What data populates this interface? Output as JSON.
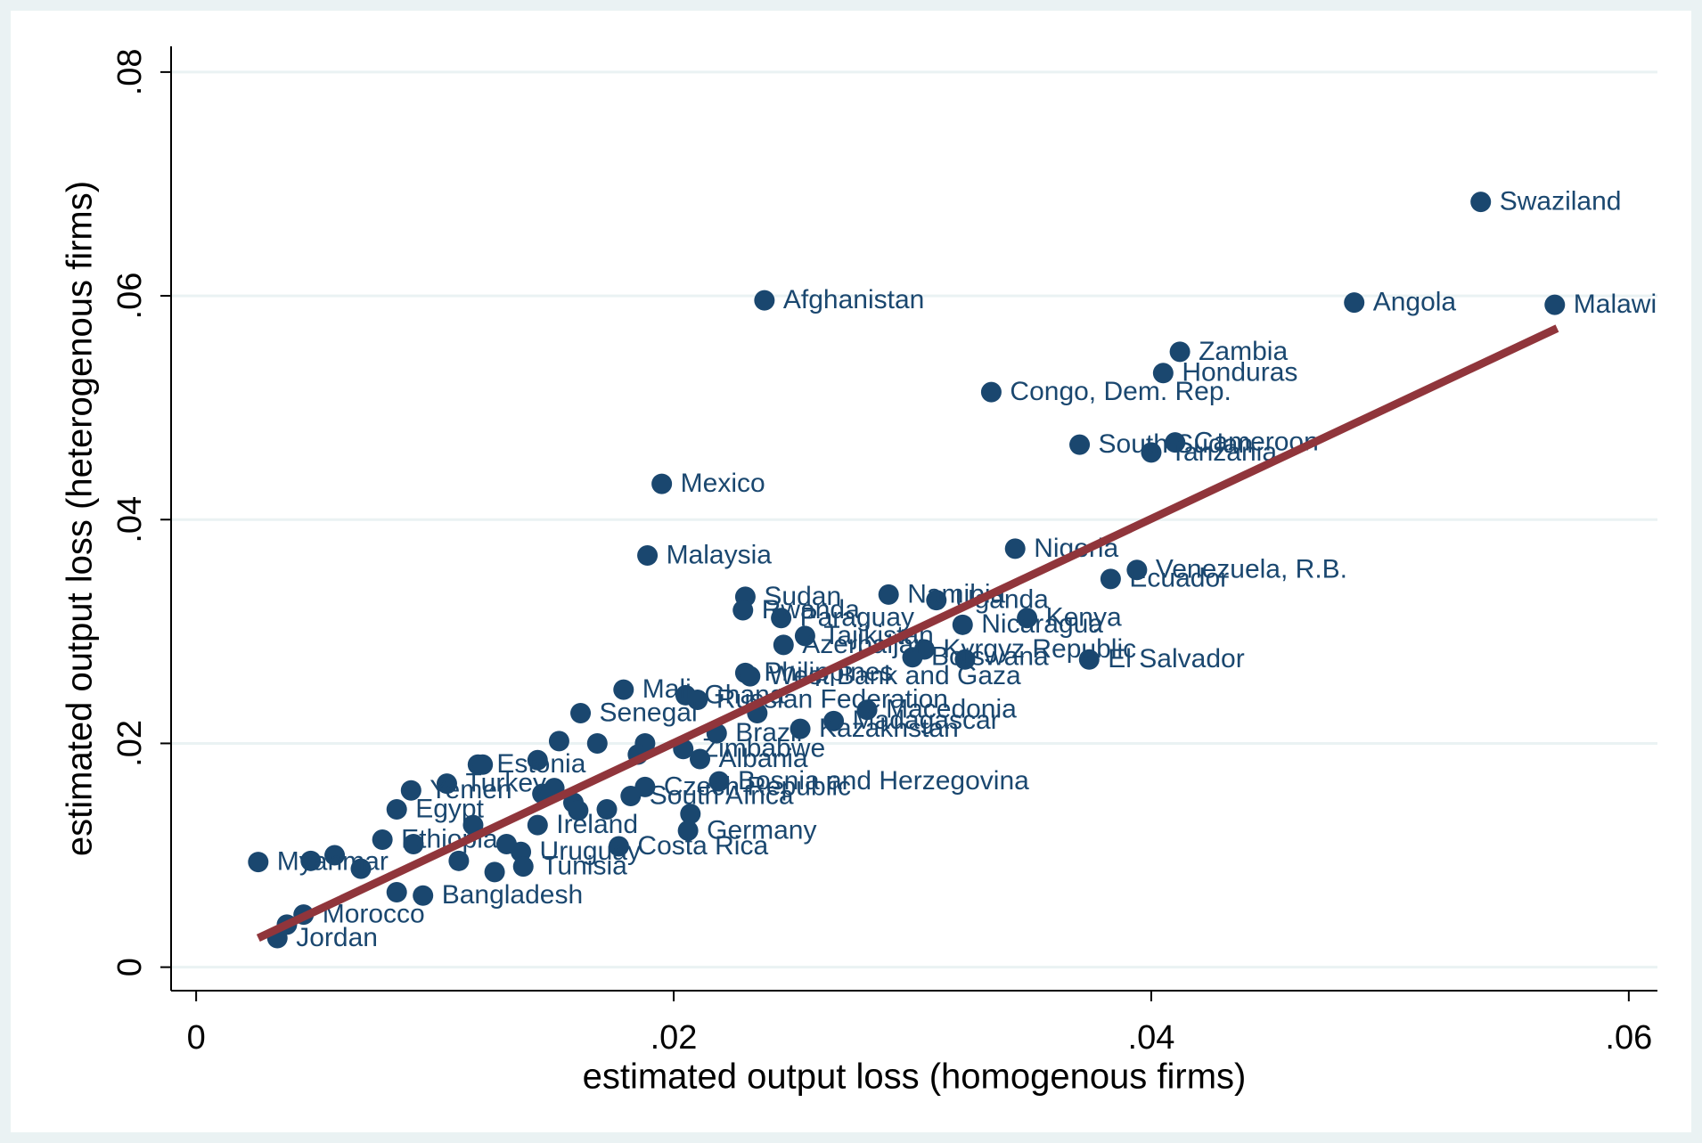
{
  "chart_data": {
    "type": "scatter",
    "x_label": "estimated output loss (homogenous firms)",
    "y_label": "estimated output loss (heterogenous firms)",
    "xlim": [
      -0.00105,
      0.0612
    ],
    "ylim": [
      -0.0021,
      0.0823
    ],
    "xticks": [
      0,
      {
        "value": 0.02,
        "label": ".02"
      },
      {
        "value": 0.04,
        "label": ".04"
      },
      {
        "value": 0.06,
        "label": ".06"
      }
    ],
    "yticks": [
      0,
      {
        "value": 0.02,
        "label": ".02"
      },
      {
        "value": 0.04,
        "label": ".04"
      },
      {
        "value": 0.06,
        "label": ".06"
      },
      {
        "value": 0.08,
        "label": ".08"
      }
    ],
    "grid": true,
    "color": "#1a476f",
    "x": [
      0.0538,
      0.0485,
      0.0569,
      0.0238,
      0.0412,
      0.0405,
      0.0333,
      0.037,
      0.041,
      0.04,
      0.0195,
      0.0343,
      0.0189,
      0.0394,
      0.0383,
      0.023,
      0.029,
      0.031,
      0.0229,
      0.0245,
      0.0348,
      0.0321,
      0.0255,
      0.0246,
      0.0305,
      0.03,
      0.0322,
      0.0374,
      0.023,
      0.0232,
      0.0179,
      0.0205,
      0.021,
      0.0281,
      0.0267,
      0.0161,
      0.0235,
      0.0218,
      0.0253,
      0.0152,
      0.0168,
      0.0188,
      0.0204,
      0.0211,
      0.0185,
      0.0118,
      0.012,
      0.0143,
      0.0219,
      0.0188,
      0.0105,
      0.009,
      0.0182,
      0.0084,
      0.0158,
      0.0172,
      0.0207,
      0.0206,
      0.0143,
      0.0078,
      0.0177,
      0.0136,
      0.0026,
      0.0048,
      0.0058,
      0.0069,
      0.0091,
      0.0116,
      0.0137,
      0.0125,
      0.0095,
      0.0084,
      0.0045,
      0.0038,
      0.0034,
      0.015,
      0.016,
      0.013,
      0.011,
      0.0145
    ],
    "y": [
      0.0684,
      0.0594,
      0.0592,
      0.0596,
      0.055,
      0.0531,
      0.0514,
      0.0467,
      0.0469,
      0.046,
      0.0432,
      0.0374,
      0.0368,
      0.0355,
      0.0347,
      0.0331,
      0.0333,
      0.0328,
      0.0319,
      0.0312,
      0.0312,
      0.0306,
      0.0296,
      0.0288,
      0.0284,
      0.0277,
      0.0275,
      0.0275,
      0.0263,
      0.026,
      0.0248,
      0.0243,
      0.0239,
      0.023,
      0.022,
      0.0227,
      0.0227,
      0.0209,
      0.0213,
      0.0202,
      0.02,
      0.02,
      0.0195,
      0.0186,
      0.019,
      0.0181,
      0.0181,
      0.0185,
      0.0166,
      0.0161,
      0.0164,
      0.0158,
      0.0153,
      0.0141,
      0.0147,
      0.0141,
      0.0137,
      0.0122,
      0.0127,
      0.0114,
      0.0108,
      0.0103,
      0.0094,
      0.0095,
      0.01,
      0.0088,
      0.011,
      0.0127,
      0.009,
      0.0085,
      0.0064,
      0.0067,
      0.0047,
      0.0038,
      0.0026,
      0.016,
      0.014,
      0.011,
      0.0095,
      0.0155
    ],
    "labels": [
      "Swaziland",
      "Angola",
      "Malawi",
      "Afghanistan",
      "Zambia",
      "Honduras",
      "Congo, Dem. Rep.",
      "South Sudan",
      "Cameroon",
      "Tanzania",
      "Mexico",
      "Nigeria",
      "Malaysia",
      "Venezuela, R.B.",
      "Ecuador",
      "Sudan",
      "Namibia",
      "Uganda",
      "Rwanda",
      "Paraguay",
      "Kenya",
      "Nicaragua",
      "Tajikistan",
      "Azerbaijan",
      "Kyrgyz Republic",
      "Botswana",
      null,
      "El Salvador",
      "Philippines",
      "West Bank and Gaza",
      "Mali",
      "Ghana",
      "Russian Federation",
      "Macedonia",
      "Madagascar",
      "Senegal",
      null,
      "Brazil",
      "Kazakhstan",
      null,
      null,
      null,
      "Zimbabwe",
      "Albania",
      null,
      "Estonia",
      null,
      null,
      "Bosnia and Herzegovina",
      "Czech Republic",
      "Turkey",
      "Yemen",
      "South Africa",
      "Egypt",
      null,
      null,
      null,
      "Germany",
      "Ireland",
      "Ethiopia",
      "Costa Rica",
      "Uruguay",
      "Myanmar",
      null,
      null,
      null,
      null,
      null,
      "Tunisia",
      null,
      "Bangladesh",
      null,
      "Morocco",
      null,
      "Jordan",
      null,
      null,
      null,
      null,
      null
    ],
    "fit_line": {
      "color": "#90353b",
      "x": [
        0.0026,
        0.057
      ],
      "y": [
        0.0026,
        0.0571
      ]
    }
  }
}
